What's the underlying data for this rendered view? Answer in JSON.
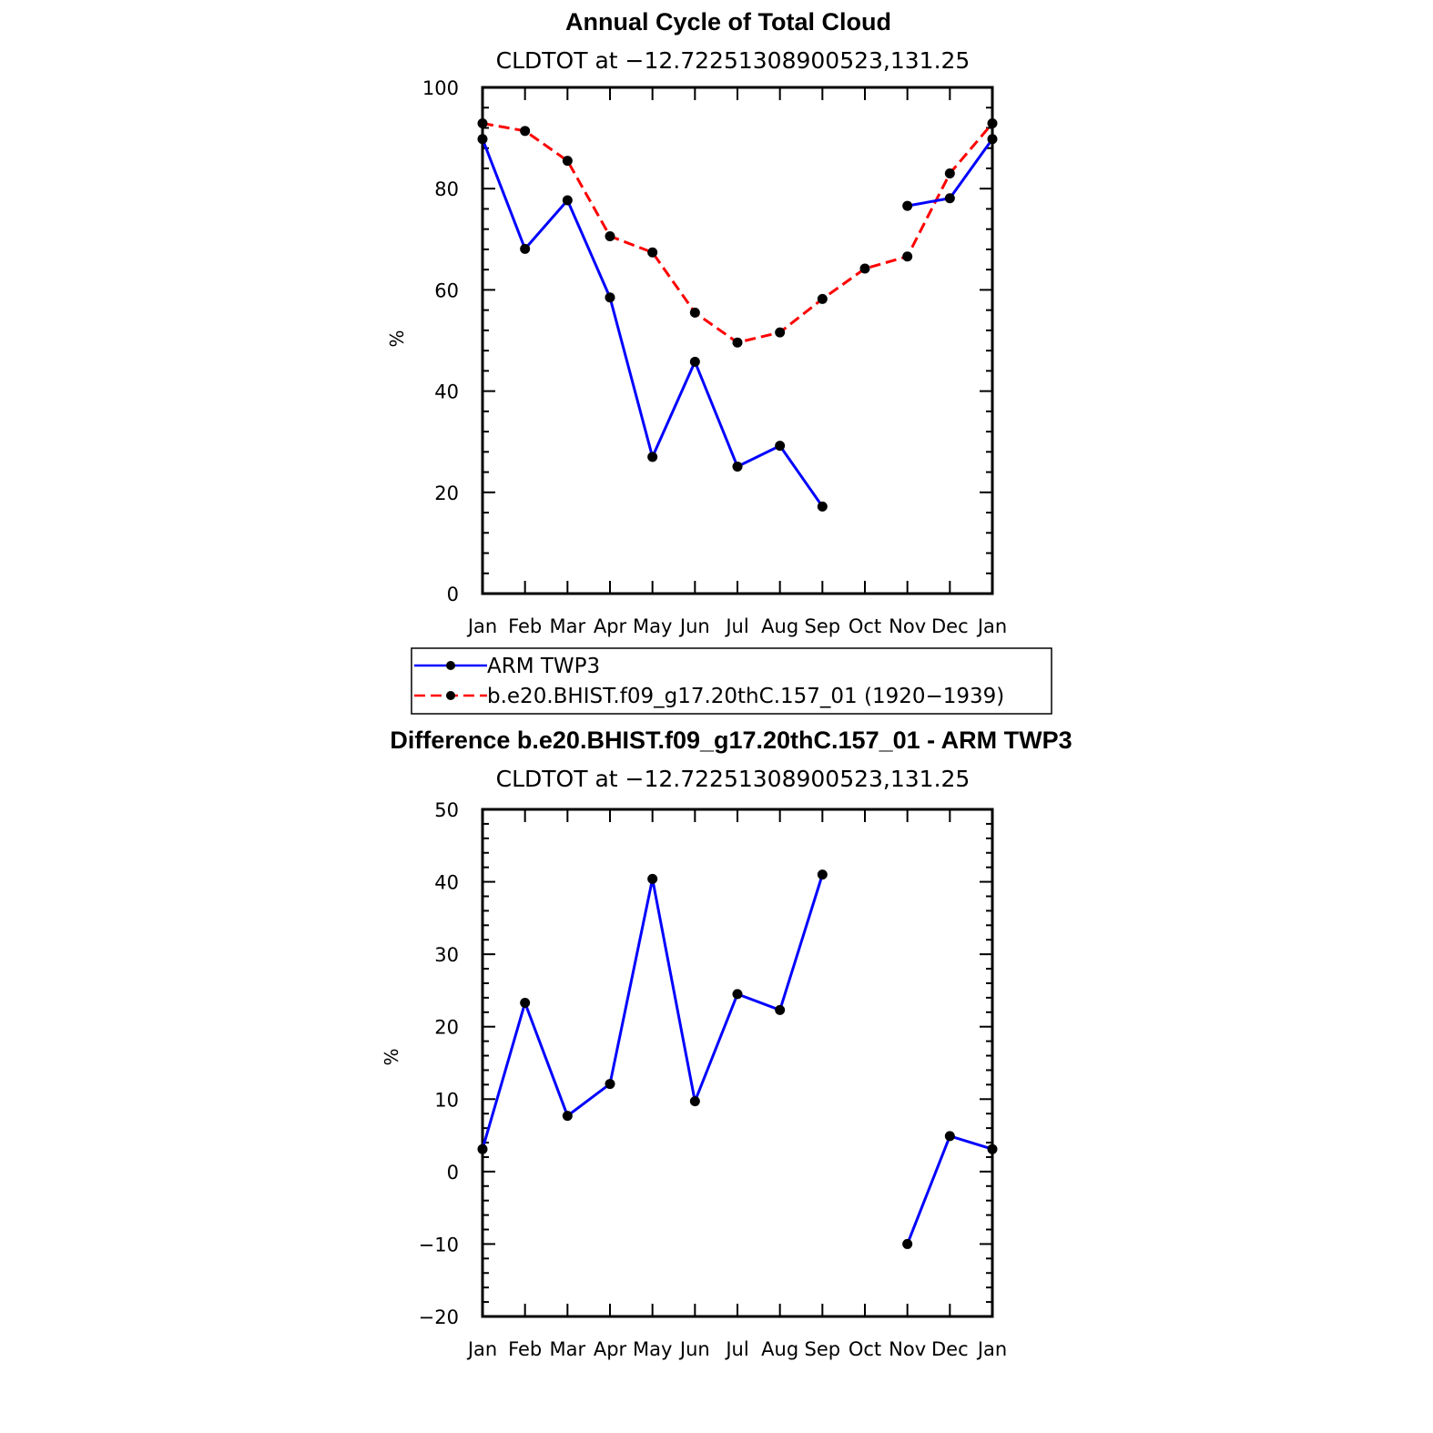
{
  "chart_data": [
    {
      "type": "line",
      "title": "Annual Cycle of Total Cloud",
      "subtitle": "CLDTOT at −12.72251308900523,131.25",
      "ylabel": "%",
      "ylim": [
        0,
        100
      ],
      "yticks": [
        0,
        20,
        40,
        60,
        80,
        100
      ],
      "yticklabels": [
        "0",
        "20",
        "40",
        "60",
        "80",
        "100"
      ],
      "categories": [
        "Jan",
        "Feb",
        "Mar",
        "Apr",
        "May",
        "Jun",
        "Jul",
        "Aug",
        "Sep",
        "Oct",
        "Nov",
        "Dec",
        "Jan"
      ],
      "series": [
        {
          "name": "ARM TWP3",
          "color": "#0000ff",
          "dash": "solid",
          "values": [
            89.8,
            68.1,
            77.7,
            58.5,
            27.0,
            45.8,
            25.1,
            29.2,
            17.2,
            null,
            76.6,
            78.1,
            89.8
          ]
        },
        {
          "name": "b.e20.BHIST.f09_g17.20thC.157_01 (1920−1939)",
          "color": "#ff0000",
          "dash": "dashed",
          "values": [
            92.9,
            91.4,
            85.5,
            70.6,
            67.4,
            55.5,
            49.6,
            51.6,
            58.2,
            64.2,
            66.6,
            83.0,
            92.9
          ]
        }
      ],
      "legend": "below"
    },
    {
      "type": "line",
      "title": "Difference b.e20.BHIST.f09_g17.20thC.157_01 - ARM TWP3",
      "subtitle": "CLDTOT at −12.72251308900523,131.25",
      "ylabel": "%",
      "ylim": [
        -20,
        50
      ],
      "yticks": [
        -20,
        -10,
        0,
        10,
        20,
        30,
        40,
        50
      ],
      "yticklabels": [
        "−20",
        "−10",
        "0",
        "10",
        "20",
        "30",
        "40",
        "50"
      ],
      "categories": [
        "Jan",
        "Feb",
        "Mar",
        "Apr",
        "May",
        "Jun",
        "Jul",
        "Aug",
        "Sep",
        "Oct",
        "Nov",
        "Dec",
        "Jan"
      ],
      "series": [
        {
          "color": "#0000ff",
          "dash": "solid",
          "values": [
            3.1,
            23.3,
            7.7,
            12.1,
            40.4,
            9.7,
            24.5,
            22.3,
            41.0,
            null,
            -10.0,
            4.9,
            3.1
          ]
        }
      ]
    }
  ]
}
